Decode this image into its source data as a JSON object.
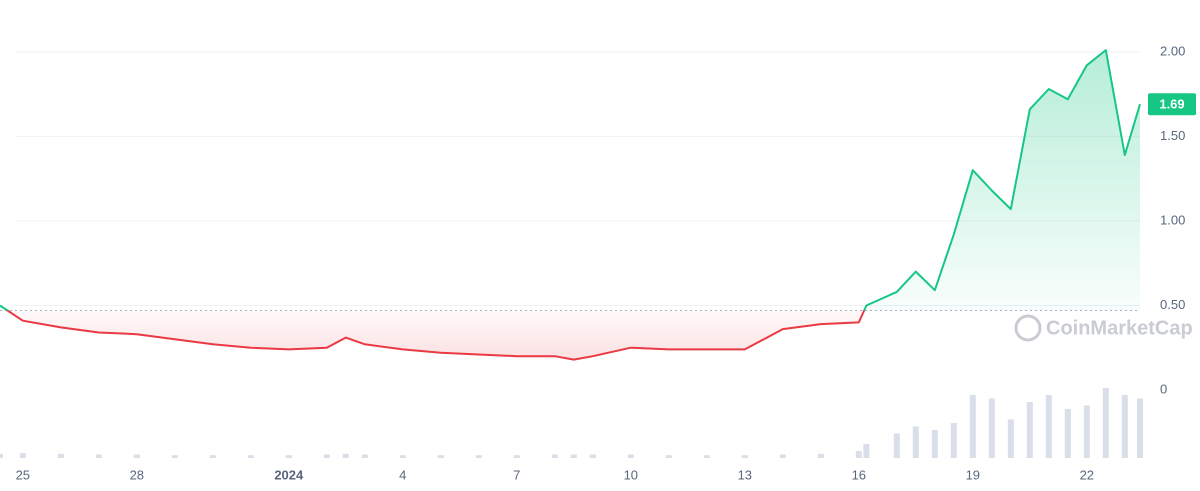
{
  "chart_data": {
    "type": "line",
    "x": [
      -0.6,
      0,
      1,
      2,
      3,
      4,
      5,
      6,
      7,
      8,
      8.5,
      9,
      10,
      11,
      12,
      13,
      14,
      14.5,
      15,
      16,
      17,
      18,
      19,
      20,
      21,
      22,
      22.2,
      23,
      23.5,
      24,
      24.5,
      25,
      25.5,
      26,
      26.5,
      27,
      27.5,
      28,
      28.5,
      29,
      29.4
    ],
    "series": [
      {
        "color": "#16c784",
        "below_color": "#ea3943",
        "values": [
          0.5,
          0.41,
          0.37,
          0.34,
          0.33,
          0.3,
          0.27,
          0.25,
          0.24,
          0.25,
          0.31,
          0.27,
          0.24,
          0.22,
          0.21,
          0.2,
          0.2,
          0.18,
          0.2,
          0.25,
          0.24,
          0.24,
          0.24,
          0.36,
          0.39,
          0.4,
          0.5,
          0.58,
          0.7,
          0.59,
          0.92,
          1.3,
          1.18,
          1.07,
          1.66,
          1.78,
          1.72,
          1.92,
          2.01,
          1.39,
          1.69
        ],
        "volume": [
          6,
          7,
          6,
          5,
          5,
          4,
          4,
          4,
          4,
          5,
          6,
          5,
          4,
          4,
          4,
          4,
          5,
          5,
          5,
          5,
          4,
          4,
          4,
          5,
          6,
          10,
          20,
          35,
          45,
          40,
          50,
          90,
          85,
          55,
          80,
          90,
          70,
          75,
          100,
          90,
          85
        ]
      }
    ],
    "baseline": 0.47,
    "last_price": 1.69,
    "xlim": [
      -0.6,
      29.4
    ],
    "xticks": [
      {
        "value": 0,
        "label": "25"
      },
      {
        "value": 3,
        "label": "28"
      },
      {
        "value": 7,
        "label": "2024"
      },
      {
        "value": 10,
        "label": "4"
      },
      {
        "value": 13,
        "label": "7"
      },
      {
        "value": 16,
        "label": "10"
      },
      {
        "value": 19,
        "label": "13"
      },
      {
        "value": 22,
        "label": "16"
      },
      {
        "value": 25,
        "label": "19"
      },
      {
        "value": 28,
        "label": "22"
      }
    ],
    "ylim": [
      0,
      2.2
    ],
    "yticks": [
      0,
      {
        "value": 0.5,
        "label": "0.50"
      },
      {
        "value": 1,
        "label": "1.00"
      },
      {
        "value": 1.5,
        "label": "1.50"
      },
      {
        "value": 2,
        "label": "2.00"
      }
    ],
    "vlim": [
      0,
      100
    ],
    "grid": true,
    "watermark": "CoinMarketCap"
  }
}
